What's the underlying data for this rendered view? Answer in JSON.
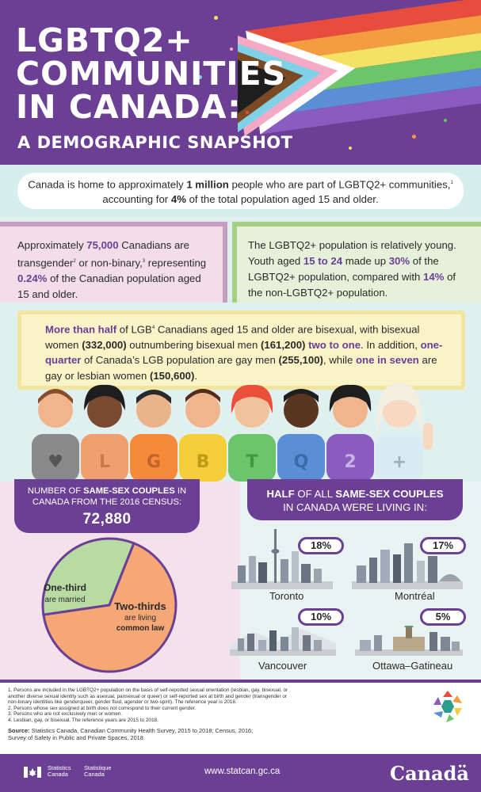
{
  "header": {
    "title_lines": [
      "LGBTQ2+",
      "COMMUNITIES",
      "IN CANADA:"
    ],
    "subtitle": "A DEMOGRAPHIC SNAPSHOT",
    "colors": {
      "background": "#6a3f94",
      "accent": "#6a3f94"
    }
  },
  "intro": {
    "part1": "Canada is home to approximately ",
    "bold1": "1 million",
    "part2": " people who are part of LGBTQ2+  communities,",
    "sup": "1",
    "part3": " accounting for ",
    "bold2": "4%",
    "part4": " of the total population aged 15 and older."
  },
  "trans_box": {
    "p1": "Approximately ",
    "h1": "75,000",
    "p2": " Canadians are transgender",
    "sup1": "2",
    "p3": " or non-binary,",
    "sup2": "3",
    "p4": " representing ",
    "h2": "0.24%",
    "p5": " of the Canadian population aged 15 and older."
  },
  "youth_box": {
    "p1": "The LGBTQ2+ population is relatively young. Youth aged ",
    "h1": "15 to 24",
    "p2": " made up ",
    "h2": "30%",
    "p3": " of the LGBTQ2+ population, compared with ",
    "h3": "14%",
    "p4": " of the non-LGBTQ2+ population."
  },
  "lgb_box": {
    "h1": "More than half",
    "p1": " of LGB",
    "sup": "4",
    "p2": " Canadians aged 15 and older are bisexual, with bisexual women ",
    "b1": "(332,000)",
    "p3": " outnumbering bisexual men ",
    "b2": "(161,200)",
    "p4": " ",
    "h2": "two to one",
    "p5": ". In addition, ",
    "h3": "one-quarter",
    "p6": " of Canada’s LGB population are gay men ",
    "b3": "(255,100)",
    "p7": ", while ",
    "h4": "one in seven",
    "p8": " are gay or lesbian women ",
    "b4": "(150,600)",
    "p9": "."
  },
  "people_shirts": [
    "♥",
    "L",
    "G",
    "B",
    "T",
    "Q",
    "2",
    "+"
  ],
  "couples": {
    "line1_pre": "NUMBER OF ",
    "line1_bold": "SAME-SEX COUPLES",
    "line1_post": " IN",
    "line2": "CANADA FROM THE 2016 CENSUS:",
    "total": "72,880"
  },
  "chart_data": {
    "type": "pie",
    "slices": [
      {
        "label": "One-third",
        "sublabel": "are married",
        "value": 0.3333,
        "color": "#b8dba4"
      },
      {
        "label": "Two-thirds",
        "sublabel_lines": [
          "are living",
          "common law"
        ],
        "value": 0.6667,
        "color": "#f5a876"
      }
    ]
  },
  "half": {
    "b1": "HALF",
    "p1": " OF ALL ",
    "b2": "SAME-SEX COUPLES",
    "line2": "IN CANADA WERE LIVING IN:"
  },
  "cities": [
    {
      "name": "Toronto",
      "share": "18%"
    },
    {
      "name": "Montréal",
      "share": "17%"
    },
    {
      "name": "Vancouver",
      "share": "10%"
    },
    {
      "name": "Ottawa–Gatineau",
      "share": "5%"
    }
  ],
  "footnotes": [
    "1. Persons are included in the LGBTQ2+ population on the basis of self-reported sexual orientation (lesbian, gay, bisexual, or",
    "    another diverse sexual identity such as asexual,  pansexual or queer) or self-reported sex at birth and gender (transgender or",
    "    non-binary identities like genderqueer, gender fluid, agender or two-spirit). The reference year is 2018.",
    "2. Persons whose sex assigned at birth does not correspond to their current gender.",
    "3. Persons who are not exclusively men or women.",
    "4. Lesbian, gay, or bisexual. The reference years are 2015 to 2018."
  ],
  "source": {
    "label": "Source:",
    "line1": " Statistics Canada, Canadian Community Health Survey, 2015 to 2018; Census, 2016;",
    "line2": "Survey of Safety in Public and Private Spaces, 2018."
  },
  "footer": {
    "sc_en_1": "Statistics",
    "sc_en_2": "Canada",
    "sc_fr_1": "Statistique",
    "sc_fr_2": "Canada",
    "url": "www.statcan.gc.ca",
    "wordmark": "Canadä"
  }
}
